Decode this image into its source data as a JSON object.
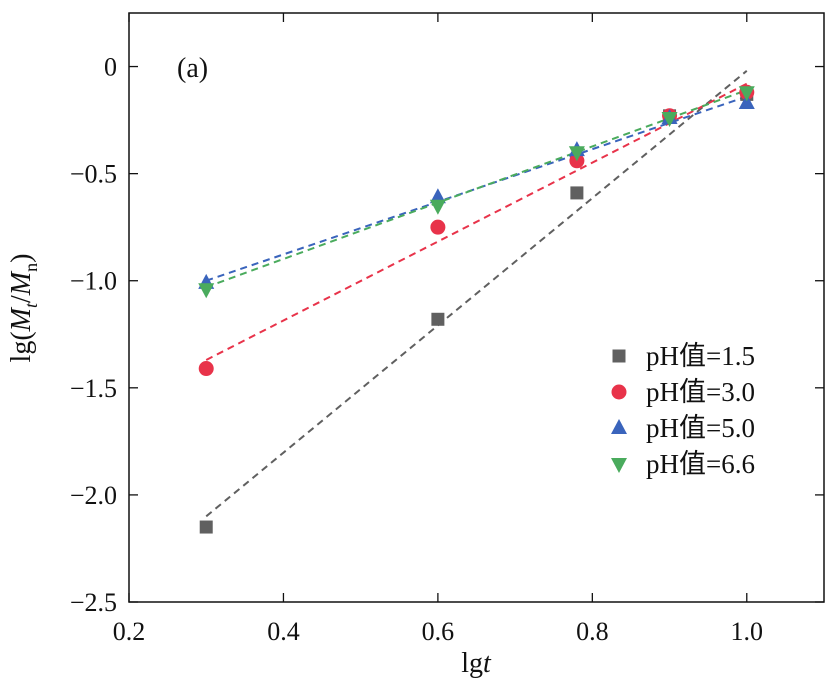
{
  "chart_data": {
    "type": "scatter",
    "panel_label": "(a)",
    "xlabel": "lgt",
    "ylabel": "lg(Mt/Mn)",
    "xlim": [
      0.2,
      1.1
    ],
    "ylim": [
      -2.5,
      0.25
    ],
    "xticks": [
      0.2,
      0.4,
      0.6,
      0.8,
      1.0
    ],
    "yticks": [
      0,
      -0.5,
      -1.0,
      -1.5,
      -2.0,
      -2.5
    ],
    "xtick_labels": [
      "0.2",
      "0.4",
      "0.6",
      "0.8",
      "1.0"
    ],
    "ytick_labels": [
      "0",
      "−0.5",
      "−1.0",
      "−1.5",
      "−2.0",
      "−2.5"
    ],
    "grid": false,
    "legend_position": "lower-right",
    "x": [
      0.3,
      0.6,
      0.78,
      0.9,
      1.0
    ],
    "series": [
      {
        "name": "pH值=1.5",
        "marker": "square",
        "color": "#606060",
        "values": [
          -2.15,
          -1.18,
          -0.59,
          -0.23,
          -0.13
        ],
        "fit": [
          [
            0.3,
            -2.1
          ],
          [
            1.0,
            -0.02
          ]
        ]
      },
      {
        "name": "pH值=3.0",
        "marker": "circle",
        "color": "#e8334a",
        "values": [
          -1.41,
          -0.75,
          -0.44,
          -0.23,
          -0.12
        ],
        "fit": [
          [
            0.3,
            -1.37
          ],
          [
            1.0,
            -0.08
          ]
        ]
      },
      {
        "name": "pH值=5.0",
        "marker": "triangle-up",
        "color": "#3a64bc",
        "values": [
          -1.01,
          -0.61,
          -0.39,
          -0.24,
          -0.17
        ],
        "fit": [
          [
            0.3,
            -1.0
          ],
          [
            1.0,
            -0.14
          ]
        ]
      },
      {
        "name": "pH值=6.6",
        "marker": "triangle-down",
        "color": "#4aab5d",
        "values": [
          -1.04,
          -0.65,
          -0.4,
          -0.24,
          -0.12
        ],
        "fit": [
          [
            0.3,
            -1.03
          ],
          [
            1.0,
            -0.11
          ]
        ]
      }
    ]
  }
}
